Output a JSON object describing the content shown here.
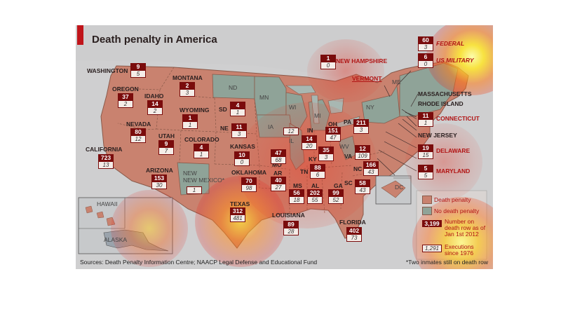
{
  "title": "Death penalty in America",
  "source": "Sources: Death Penalty Information Centre; NAACP Legal Defense and Educational Fund",
  "footnote": "*Two inmates still on death row",
  "legend": {
    "death_penalty": "Death penalty",
    "no_death_penalty": "No death penalty",
    "row_box_value": "3,199",
    "row_text_line1": "Number on",
    "row_text_line2": "death row as of",
    "row_text_line3": "Jan 1st 2012",
    "exec_box_value": "1,291",
    "exec_text_line1": "Executions",
    "exec_text_line2": "since 1976"
  },
  "colors": {
    "death_penalty": "#c9826f",
    "no_death_penalty": "#8fa398",
    "box_dark": "#7a0c0c",
    "accent": "#c0141a"
  },
  "states": {
    "washington": {
      "name": "WASHINGTON",
      "row": "9",
      "exec": "5"
    },
    "oregon": {
      "name": "OREGON",
      "row": "37",
      "exec": "2"
    },
    "idaho": {
      "name": "IDAHO",
      "row": "14",
      "exec": "2"
    },
    "montana": {
      "name": "MONTANA",
      "row": "2",
      "exec": "3"
    },
    "wyoming": {
      "name": "WYOMING",
      "row": "1",
      "exec": "1"
    },
    "nevada": {
      "name": "NEVADA",
      "row": "80",
      "exec": "12"
    },
    "utah": {
      "name": "UTAH",
      "row": "9",
      "exec": "7"
    },
    "colorado": {
      "name": "COLORADO",
      "row": "4",
      "exec": "1"
    },
    "california": {
      "name": "CALIFORNIA",
      "row": "723",
      "exec": "13"
    },
    "arizona": {
      "name": "ARIZONA",
      "row": "153",
      "exec": "30"
    },
    "new_mexico": {
      "name": "NEW MEXICO*",
      "row": "",
      "exec": "1"
    },
    "sd": {
      "name": "SD",
      "row": "4",
      "exec": "1"
    },
    "ne": {
      "name": "NE",
      "row": "11",
      "exec": "3"
    },
    "kansas": {
      "name": "KANSAS",
      "row": "10",
      "exec": "0"
    },
    "oklahoma": {
      "name": "OKLAHOMA",
      "row": "70",
      "exec": "98"
    },
    "texas": {
      "name": "TEXAS",
      "row": "312",
      "exec": "481"
    },
    "mo": {
      "name": "MO",
      "row": "47",
      "exec": "68"
    },
    "ar": {
      "name": "AR",
      "row": "40",
      "exec": "27"
    },
    "louisiana": {
      "name": "LOUISIANA",
      "row": "89",
      "exec": "28"
    },
    "il": {
      "name": "IL",
      "row": "",
      "exec": "12"
    },
    "in": {
      "name": "IN",
      "row": "14",
      "exec": "20"
    },
    "oh": {
      "name": "OH",
      "row": "151",
      "exec": "47"
    },
    "ky": {
      "name": "KY",
      "row": "35",
      "exec": "3"
    },
    "tn": {
      "name": "TN",
      "row": "88",
      "exec": "6"
    },
    "ms": {
      "name": "MS",
      "row": "56",
      "exec": "18"
    },
    "al": {
      "name": "AL",
      "row": "202",
      "exec": "55"
    },
    "ga": {
      "name": "GA",
      "row": "99",
      "exec": "52"
    },
    "florida": {
      "name": "FLORIDA",
      "row": "402",
      "exec": "73"
    },
    "sc": {
      "name": "SC",
      "row": "58",
      "exec": "43"
    },
    "nc": {
      "name": "NC",
      "row": "166",
      "exec": "43"
    },
    "va": {
      "name": "VA",
      "row": "12",
      "exec": "109"
    },
    "pa": {
      "name": "PA",
      "row": "211",
      "exec": "3"
    },
    "new_hampshire": {
      "name": "NEW HAMPSHIRE",
      "row": "1",
      "exec": "0"
    },
    "connecticut": {
      "name": "CONNECTICUT",
      "row": "11",
      "exec": "1"
    },
    "delaware": {
      "name": "DELAWARE",
      "row": "19",
      "exec": "15"
    },
    "maryland": {
      "name": "MARYLAND",
      "row": "5",
      "exec": "5"
    },
    "federal": {
      "name": "FEDERAL",
      "row": "60",
      "exec": "3"
    },
    "us_military": {
      "name": "US MILITARY",
      "row": "6",
      "exec": "0"
    }
  },
  "labels": {
    "nd": "ND",
    "mn": "MN",
    "wi": "WI",
    "mi": "MI",
    "ia": "IA",
    "ny": "NY",
    "wv": "WV",
    "me": "ME",
    "vermont": "VERMONT",
    "massachusetts": "MASSACHUSETTS",
    "rhode_island": "RHODE ISLAND",
    "new_jersey": "NEW JERSEY",
    "dc": "DC",
    "hawaii": "HAWAII",
    "alaska": "ALASKA"
  }
}
